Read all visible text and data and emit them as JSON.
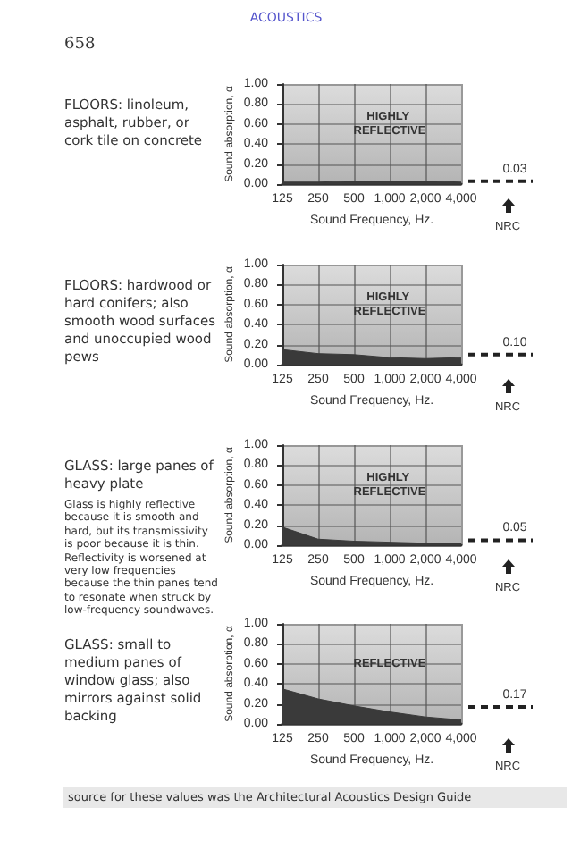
{
  "chart_data": [
    {
      "type": "area",
      "title": "FLOORS: linoleum, asphalt, rubber, or cork tile on concrete",
      "xlabel": "Sound Frequency, Hz.",
      "ylabel": "Sound absorption, α",
      "categories": [
        "125",
        "250",
        "500",
        "1,000",
        "2,000",
        "4,000"
      ],
      "color": "#3a3a3a",
      "values": [
        0.02,
        0.02,
        0.03,
        0.03,
        0.03,
        0.02
      ],
      "ylim": [
        0,
        1
      ],
      "yticks": [
        {
          "value": 0,
          "label": "0.00"
        },
        {
          "value": 0.2,
          "label": "0.20"
        },
        {
          "value": 0.4,
          "label": "0.40"
        },
        {
          "value": 0.6,
          "label": "0.60"
        },
        {
          "value": 0.8,
          "label": "0.80"
        },
        {
          "value": 1,
          "label": "1.00"
        }
      ],
      "grid": true,
      "ref_lines": [
        {
          "axis": "y",
          "value": 0.03,
          "label": "0.03",
          "line_style": "dashed"
        }
      ],
      "annotations": [
        "ACOUSTICS",
        "658",
        "HIGHLY REFLECTIVE",
        "NRC"
      ]
    },
    {
      "type": "area",
      "title": "FLOORS: hardwood or hard conifers; also smooth wood surfaces and unoccupied wood pews",
      "xlabel": "Sound Frequency, Hz.",
      "ylabel": "Sound absorption, α",
      "categories": [
        "125",
        "250",
        "500",
        "1,000",
        "2,000",
        "4,000"
      ],
      "color": "#3a3a3a",
      "values": [
        0.15,
        0.11,
        0.1,
        0.07,
        0.06,
        0.07
      ],
      "ylim": [
        0,
        1
      ],
      "yticks": [
        {
          "value": 0,
          "label": "0.00"
        },
        {
          "value": 0.2,
          "label": "0.20"
        },
        {
          "value": 0.4,
          "label": "0.40"
        },
        {
          "value": 0.6,
          "label": "0.60"
        },
        {
          "value": 0.8,
          "label": "0.80"
        },
        {
          "value": 1,
          "label": "1.00"
        }
      ],
      "grid": true,
      "ref_lines": [
        {
          "axis": "y",
          "value": 0.1,
          "label": "0.10",
          "line_style": "dashed"
        }
      ],
      "annotations": [
        "HIGHLY REFLECTIVE",
        "NRC"
      ]
    },
    {
      "type": "area",
      "title": "GLASS: large panes of heavy plate",
      "subtitle": "Glass is highly reflective because it is smooth and hard, but its transmissivity is poor because it is thin. Reflectivity is worsened at very low frequencies because the thin panes tend to resonate when struck by low-frequency soundwaves.",
      "xlabel": "Sound Frequency, Hz.",
      "ylabel": "Sound absorption, α",
      "categories": [
        "125",
        "250",
        "500",
        "1,000",
        "2,000",
        "4,000"
      ],
      "color": "#3a3a3a",
      "values": [
        0.18,
        0.06,
        0.04,
        0.03,
        0.02,
        0.02
      ],
      "ylim": [
        0,
        1
      ],
      "yticks": [
        {
          "value": 0,
          "label": "0.00"
        },
        {
          "value": 0.2,
          "label": "0.20"
        },
        {
          "value": 0.4,
          "label": "0.40"
        },
        {
          "value": 0.6,
          "label": "0.60"
        },
        {
          "value": 0.8,
          "label": "0.80"
        },
        {
          "value": 1,
          "label": "1.00"
        }
      ],
      "grid": true,
      "ref_lines": [
        {
          "axis": "y",
          "value": 0.05,
          "label": "0.05",
          "line_style": "dashed"
        }
      ],
      "annotations": [
        "HIGHLY REFLECTIVE",
        "NRC"
      ]
    },
    {
      "type": "area",
      "title": "GLASS: small to medium panes of window glass; also mirrors against solid backing",
      "xlabel": "Sound Frequency, Hz.",
      "ylabel": "Sound absorption, α",
      "categories": [
        "125",
        "250",
        "500",
        "1,000",
        "2,000",
        "4,000"
      ],
      "color": "#3a3a3a",
      "values": [
        0.35,
        0.25,
        0.18,
        0.12,
        0.07,
        0.04
      ],
      "ylim": [
        0,
        1
      ],
      "yticks": [
        {
          "value": 0,
          "label": "0.00"
        },
        {
          "value": 0.2,
          "label": "0.20"
        },
        {
          "value": 0.4,
          "label": "0.40"
        },
        {
          "value": 0.6,
          "label": "0.60"
        },
        {
          "value": 0.8,
          "label": "0.80"
        },
        {
          "value": 1,
          "label": "1.00"
        }
      ],
      "grid": true,
      "ref_lines": [
        {
          "axis": "y",
          "value": 0.17,
          "label": "0.17",
          "line_style": "dashed"
        }
      ],
      "annotations": [
        "REFLECTIVE",
        "NRC",
        "source for these values was the Architectural Acoustics Design Guide"
      ]
    }
  ]
}
